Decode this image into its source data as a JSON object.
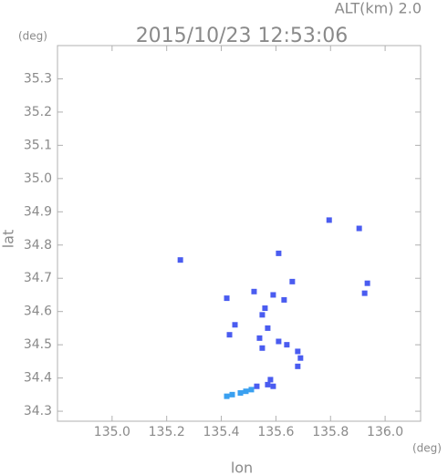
{
  "chart_data": {
    "type": "scatter",
    "title": "2015/10/23 12:53:06",
    "annotation": "ALT(km) 2.0",
    "y_unit": "(deg)",
    "x_unit": "(deg)",
    "xlabel": "lon",
    "ylabel": "lat",
    "xlim": [
      134.8,
      136.13
    ],
    "ylim": [
      34.27,
      35.4
    ],
    "xticks": [
      {
        "value": 135,
        "label": "135.0"
      },
      135.2,
      135.4,
      135.6,
      135.8,
      {
        "value": 136,
        "label": "136.0"
      }
    ],
    "yticks": [
      34.3,
      34.4,
      34.5,
      34.6,
      34.7,
      34.8,
      34.9,
      {
        "value": 35,
        "label": "35.0"
      },
      35.1,
      35.2,
      35.3
    ],
    "series": [
      {
        "color": "#4a5cf0",
        "x": [
          135.25,
          135.795,
          135.905,
          135.61,
          135.66,
          135.935,
          135.925,
          135.42,
          135.52,
          135.59,
          135.63,
          135.56,
          135.45,
          135.55,
          135.57,
          135.54,
          135.55,
          135.61,
          135.64,
          135.68,
          135.69,
          135.68,
          135.43,
          135.58,
          135.57,
          135.53,
          135.59
        ],
        "values": [
          34.755,
          34.875,
          34.85,
          34.775,
          34.69,
          34.685,
          34.655,
          34.64,
          34.66,
          34.65,
          34.635,
          34.61,
          34.56,
          34.59,
          34.55,
          34.52,
          34.49,
          34.51,
          34.5,
          34.48,
          34.46,
          34.435,
          34.53,
          34.395,
          34.38,
          34.375,
          34.375
        ]
      },
      {
        "color": "#3aa0f0",
        "x": [
          135.42,
          135.44,
          135.47,
          135.49,
          135.51
        ],
        "values": [
          34.345,
          34.35,
          34.355,
          34.36,
          34.365
        ]
      }
    ]
  }
}
